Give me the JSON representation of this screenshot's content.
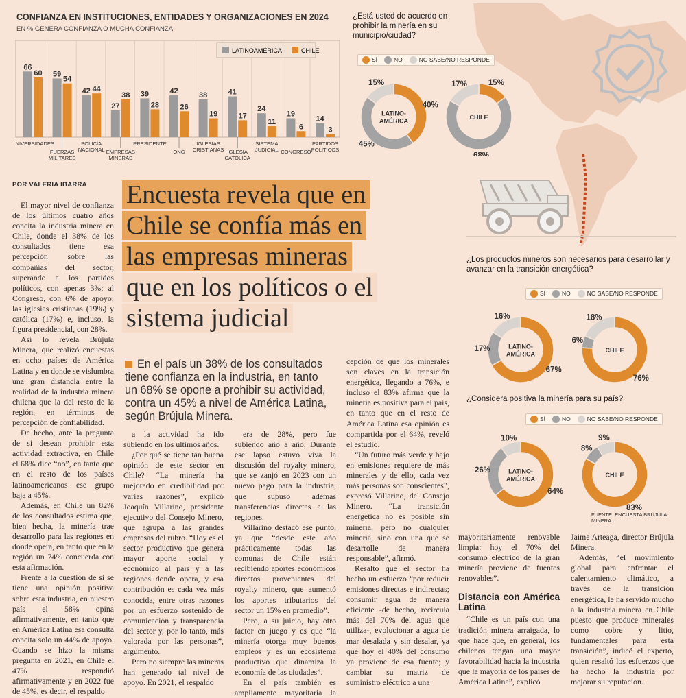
{
  "chart": {
    "title": "CONFIANZA EN INSTITUCIONES, ENTIDADES Y ORGANIZACIONES EN 2024",
    "subtitle": "EN % GENERA CONFIANZA O MUCHA CONFIANZA",
    "legend": [
      "LATINOAMÉRICA",
      "CHILE"
    ],
    "colors": {
      "latam": "#9b9b9b",
      "chile": "#e08a2e"
    }
  },
  "chart_data": [
    {
      "type": "bar",
      "title": "CONFIANZA EN INSTITUCIONES, ENTIDADES Y ORGANIZACIONES EN 2024",
      "categories": [
        [
          "UNIVERSIDADES"
        ],
        [
          "FUERZAS",
          "MILITARES"
        ],
        [
          "POLICÍA",
          "NACIONAL"
        ],
        [
          "EMPRESAS",
          "MINERAS"
        ],
        [
          "PRESIDENTE"
        ],
        [
          "ONG"
        ],
        [
          "IGLESIAS",
          "CRISTIANAS"
        ],
        [
          "IGLESIA",
          "CATÓLICA"
        ],
        [
          "SISTEMA",
          "JUDICIAL"
        ],
        [
          "CONGRESO"
        ],
        [
          "PARTIDOS",
          "POLÍTICOS"
        ]
      ],
      "series": [
        {
          "name": "LATINOAMÉRICA",
          "values": [
            66,
            59,
            42,
            27,
            39,
            42,
            38,
            41,
            24,
            19,
            14
          ]
        },
        {
          "name": "CHILE",
          "values": [
            60,
            54,
            44,
            38,
            28,
            26,
            19,
            17,
            11,
            6,
            3
          ]
        }
      ],
      "ylim": [
        0,
        70
      ]
    },
    {
      "type": "pie",
      "title": "¿Está usted de acuerdo en prohibir la minería en su municipio/ciudad?",
      "categories": [
        "SÍ",
        "NO",
        "NO SABE/NO RESPONDE"
      ],
      "series": [
        {
          "name": "LATINO-AMÉRICA",
          "values": [
            40,
            45,
            15
          ]
        },
        {
          "name": "CHILE",
          "values": [
            15,
            68,
            17
          ]
        }
      ]
    },
    {
      "type": "pie",
      "title": "¿Los productos mineros son necesarios para desarrollar y avanzar en la transición energética?",
      "categories": [
        "SÍ",
        "NO",
        "NO SABE/NO RESPONDE"
      ],
      "series": [
        {
          "name": "LATINO-AMÉRICA",
          "values": [
            67,
            17,
            16
          ]
        },
        {
          "name": "CHILE",
          "values": [
            76,
            6,
            18
          ]
        }
      ]
    },
    {
      "type": "pie",
      "title": "¿Considera positiva la minería para su país?",
      "categories": [
        "SÍ",
        "NO",
        "NO SABE/NO RESPONDE"
      ],
      "series": [
        {
          "name": "LATINO-AMÉRICA",
          "values": [
            64,
            26,
            10
          ]
        },
        {
          "name": "CHILE",
          "values": [
            83,
            8,
            9
          ]
        }
      ]
    }
  ],
  "donut_colors": [
    "#e08a2e",
    "#a3a3a3",
    "#d9d4cf"
  ],
  "pies": [
    {
      "question": "¿Está usted de acuerdo en prohibir la minería en su municipio/ciudad?"
    },
    {
      "question": "¿Los productos mineros son necesarios para desarrollar y avanzar en la transición energética?"
    },
    {
      "question": "¿Considera positiva la minería para su país?"
    }
  ],
  "legend_labels": {
    "si": "SÍ",
    "no": "NO",
    "ns": "NO SABE/NO RESPONDE"
  },
  "fuente": "FUENTE: ENCUESTA BRÚJULA MINERA",
  "byline": "POR VALERIA IBARRA",
  "headline": {
    "l1": "Encuesta revela que en",
    "l2": "Chile se confía más en",
    "l3": "las empresas mineras",
    "l4": "que en los políticos o el",
    "l5": "sistema judicial"
  },
  "lead": "En el país un 38% de los consultados tiene confianza en la industria, en tanto un 68% se opone a prohibir su actividad, contra un 45% a nivel de América Latina, según Brújula Minera.",
  "col1": [
    "El mayor nivel de confianza de los últimos cuatro años concita la industria minera en Chile, donde el 38% de los consultados tiene esa percepción sobre las compañías del sector, superando a los partidos políticos, con apenas 3%; al Congreso, con 6% de apoyo; las iglesias cristianas (19%) y católica (17%) e, incluso, la figura presidencial, con 28%.",
    "Así lo revela Brújula Minera, que realizó encuestas en ocho países de América Latina y en donde se vislumbra una gran distancia entre la realidad de la industria minera chilena que la del resto de la región, en términos de percepción de confiabilidad.",
    "De hecho, ante la pregunta de si desean prohibir esta actividad extractiva, en Chile el 68% dice “no”, en tanto que en el resto de los países latinoamericanos ese grupo baja a 45%.",
    "Además, en Chile un 82% de los consultados estima que, bien hecha, la minería trae desarrollo para las regiones en donde opera, en tanto que en la región un 74% concuerda con esta afirmación.",
    "Frente a la cuestión de si se tiene una opinión positiva sobre esta industria, en nuestro país el 58% opina afirmativamente, en tanto que en América Latina esa consulta concita solo un 44% de apoyo. Cuando se hizo la misma pregunta en 2021, en Chile el 47% respondió afirmativamente y en 2022 fue de 45%, es decir, el respaldo"
  ],
  "col2": [
    "a la actividad ha ido subiendo en los últimos años.",
    "¿Por qué se tiene tan buena opinión de este sector en Chile? “La minería ha mejorado en credibilidad por varias razones”, explicó Joaquín Villarino, presidente ejecutivo del Consejo Minero, que agrupa a las grandes empresas del rubro. “Hoy es el sector productivo que genera mayor aporte social y económico al país y a las regiones donde opera, y esa contribución es cada vez más conocida, entre otras razones por un esfuerzo sostenido de comunicación y transparencia del sector y, por lo tanto, más valorada por las personas”, argumentó.",
    "Pero no siempre las mineras han generado tal nivel de apoyo. En 2021, el respaldo"
  ],
  "col3": [
    "era de 28%, pero fue subiendo año a año. Durante ese lapso estuvo viva la discusión del royalty minero, que se zanjó en 2023 con un nuevo pago para la industria, que supuso además transferencias directas a las regiones.",
    "Villarino destacó ese punto, ya que “desde este año prácticamente todas las comunas de Chile están recibiendo aportes económicos directos provenientes del royalty minero, que aumentó los aportes tributarios del sector un 15% en promedio”.",
    "Pero, a su juicio, hay otro factor en juego y es que “la minería otorga muy buenos empleos y es un ecosistema productivo que dinamiza la economía de las ciudades”.",
    "En el país también es ampliamente mayoritaria la per-"
  ],
  "col4": [
    "cepción de que los minerales son claves en la transición energética, llegando a 76%, e incluso el 83% afirma que la minería es positiva para el país, en tanto que en el resto de América Latina esa opinión es compartida por el 64%, reveló el estudio.",
    "“Un futuro más verde y bajo en emisiones requiere de más minerales y de ello, cada vez más personas son conscientes”, expresó Villarino, del Consejo Minero. “La transición energética no es posible sin minería, pero no cualquier minería, sino con una que se desarrolle de manera responsable”, afirmó.",
    "Resaltó que el sector ha hecho un esfuerzo “por reducir emisiones directas e indirectas; consumir agua de manera eficiente -de hecho, recircula más del 70% del agua que utiliza-, evolucionar a agua de mar desalada y sin desalar, ya que hoy el 40% del consumo ya proviene de esa fuente; y cambiar su matriz de suministro eléctrico a una"
  ],
  "col5a": "mayoritariamente renovable limpia: hoy el 70% del consumo eléctrico de la gran minería proviene de fuentes renovables”.",
  "subhead": "Distancia con América Latina",
  "col5b": "“Chile es un país con una tradición minera arraigada, lo que hace que, en general, los chilenos tengan una mayor favorabilidad hacia la industria que la mayoría de los países de América Latina”, explicó",
  "col6": [
    "Jaime Arteaga, director Brújula Minera.",
    "Además, “el movimiento global para enfrentar el calentamiento climático, a través de la transición energética, le ha servido mucho a la industria minera en Chile puesto que produce minerales como cobre y litio, fundamentales para esta transición”, indicó el experto, quien resaltó los esfuerzos que ha hecho la industria por mejorar su reputación."
  ]
}
